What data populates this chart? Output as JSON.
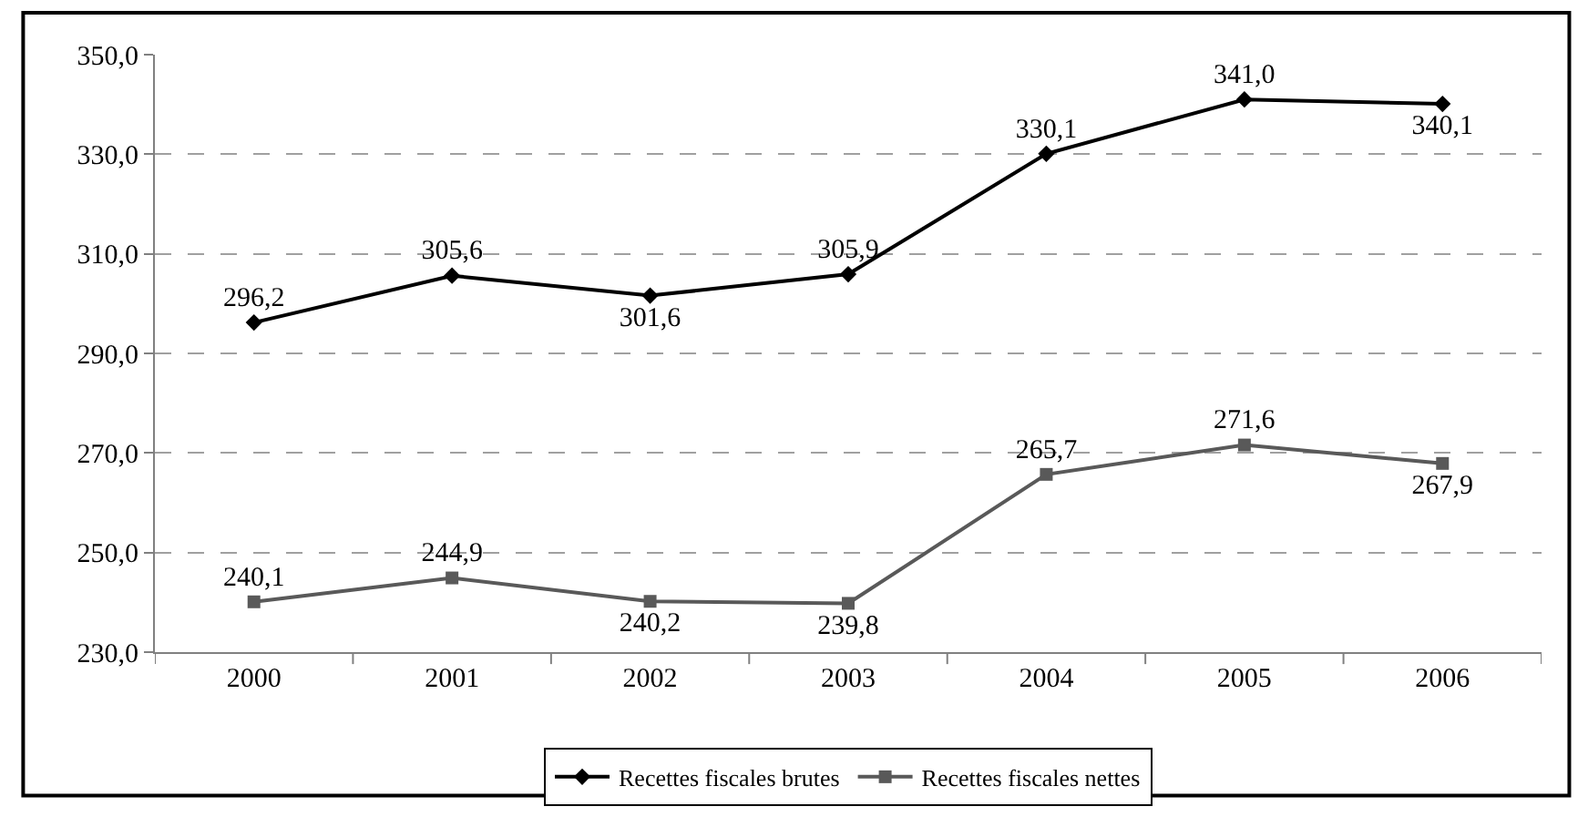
{
  "chart_data": {
    "type": "line",
    "categories": [
      "2000",
      "2001",
      "2002",
      "2003",
      "2004",
      "2005",
      "2006"
    ],
    "series": [
      {
        "name": "Recettes fiscales brutes",
        "color": "#000000",
        "marker": "diamond",
        "values": [
          296.2,
          305.6,
          301.6,
          305.9,
          330.1,
          341.0,
          340.1
        ],
        "value_labels": [
          "296,2",
          "305,6",
          "301,6",
          "305,9",
          "330,1",
          "341,0",
          "340,1"
        ]
      },
      {
        "name": "Recettes fiscales nettes",
        "color": "#595959",
        "marker": "square",
        "values": [
          240.1,
          244.9,
          240.2,
          239.8,
          265.7,
          271.6,
          267.9
        ],
        "value_labels": [
          "240,1",
          "244,9",
          "240,2",
          "239,8",
          "265,7",
          "271,6",
          "267,9"
        ]
      }
    ],
    "ylim": [
      230,
      350
    ],
    "yticks": [
      {
        "value": 230,
        "label": "230,0"
      },
      {
        "value": 250,
        "label": "250,0"
      },
      {
        "value": 270,
        "label": "270,0"
      },
      {
        "value": 290,
        "label": "290,0"
      },
      {
        "value": 310,
        "label": "310,0"
      },
      {
        "value": 330,
        "label": "330,0"
      },
      {
        "value": 350,
        "label": "350,0"
      }
    ],
    "grid": "y",
    "line_style": "solid",
    "legend": "bottom"
  }
}
